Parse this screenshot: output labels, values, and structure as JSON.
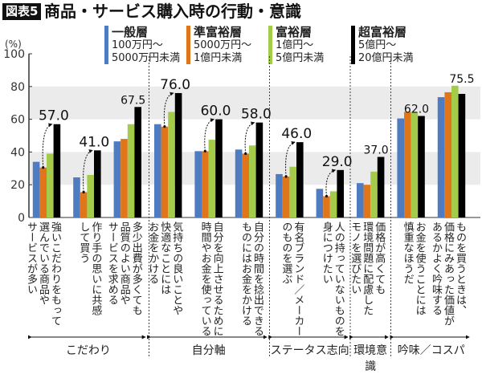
{
  "header": {
    "badge": "図表5",
    "title": "商品・サービス購入時の行動・意識"
  },
  "legend": [
    {
      "name": "一般層",
      "range1": "100万円〜",
      "range2": "5000万円未満",
      "color": "#4f7cc0"
    },
    {
      "name": "準富裕層",
      "range1": "5000万円〜",
      "range2": "1億円未満",
      "color": "#e07519"
    },
    {
      "name": "富裕層",
      "range1": "1億円〜",
      "range2": "5億円未満",
      "color": "#a4cc4a"
    },
    {
      "name": "超富裕層",
      "range1": "5億円〜",
      "range2": "20億円未満",
      "color": "#000000"
    }
  ],
  "chart_data": {
    "type": "bar",
    "ylabel": "(%)",
    "ylim": [
      0,
      100
    ],
    "yticks": [
      "0",
      "20",
      "40",
      "60",
      "80",
      "100"
    ],
    "categories": [
      "強いこだわりをもって\n選んでいる商品や\nサービスが多い",
      "作り手の思いに共感\nして買う",
      "多少出費が多くても\n品質のよい商品や\nサービスを求める",
      "気持ちの良いことや\n快適なことには\nお金をかける",
      "自分を向上させるために\n時間やお金を使っている",
      "自分の時間を捻出できる\nものにはお金をかける",
      "有名ブランド／メーカー\nのものを選ぶ",
      "人の持っていないものを\n身につけたい",
      "価格が高くても\n環境問題に配慮した\nモノを選びたい",
      "お金を使うことには\n慎重なほうだ",
      "ものを買うときは、\n価格にみあった価値が\nあるかよく吟味する"
    ],
    "series": [
      {
        "name": "一般層",
        "values": [
          34,
          24.5,
          46.5,
          57,
          40.5,
          41.5,
          26.5,
          17.5,
          21,
          60.5,
          73.5
        ]
      },
      {
        "name": "準富裕層",
        "values": [
          30.5,
          15.5,
          48,
          55.5,
          40.5,
          39,
          25,
          13,
          20,
          64.5,
          76.5
        ]
      },
      {
        "name": "富裕層",
        "values": [
          39,
          26,
          57,
          64.5,
          47.5,
          44,
          31,
          16,
          28,
          64.5,
          80.5
        ]
      },
      {
        "name": "超富裕層",
        "values": [
          57,
          41,
          67.5,
          76,
          60,
          58,
          46,
          29,
          37,
          62,
          75.5
        ]
      }
    ],
    "annotations": [
      {
        "group": 0,
        "label": "57.0",
        "arrow": true
      },
      {
        "group": 1,
        "label": "41.0",
        "arrow": true
      },
      {
        "group": 2,
        "label": "67.5",
        "arrow": false
      },
      {
        "group": 3,
        "label": "76.0",
        "arrow": true
      },
      {
        "group": 4,
        "label": "60.0",
        "arrow": true
      },
      {
        "group": 5,
        "label": "58.0",
        "arrow": true
      },
      {
        "group": 6,
        "label": "46.0",
        "arrow": true
      },
      {
        "group": 7,
        "label": "29.0",
        "arrow": true
      },
      {
        "group": 8,
        "label": "37.0",
        "arrow": false
      },
      {
        "group": 9,
        "label": "62.0",
        "arrow": false
      },
      {
        "group": 10,
        "label": "75.5",
        "arrow": false
      }
    ],
    "sections": [
      {
        "label": "こだわり",
        "from": 0,
        "to": 2
      },
      {
        "label": "自分軸",
        "from": 3,
        "to": 5
      },
      {
        "label": "ステータス志向",
        "from": 6,
        "to": 7
      },
      {
        "label": "環境意識",
        "from": 8,
        "to": 8
      },
      {
        "label": "吟味／コスパ",
        "from": 9,
        "to": 10
      }
    ],
    "grid_bands": [
      [
        20,
        40
      ],
      [
        60,
        80
      ]
    ]
  }
}
